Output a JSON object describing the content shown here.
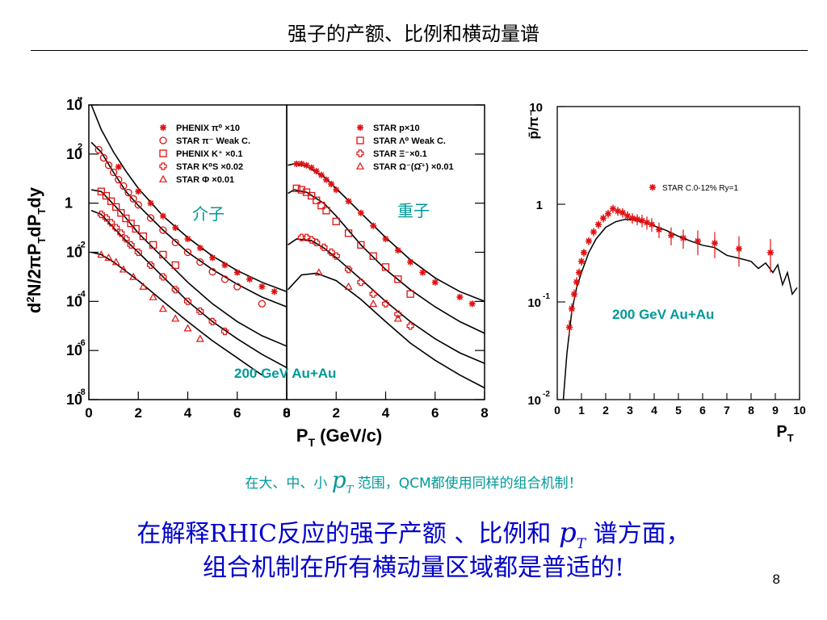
{
  "slide": {
    "title": "强子的产额、比例和横动量谱",
    "caption_pre": "在大、中、小",
    "caption_pt": "p",
    "caption_pt_sub": "T",
    "caption_post": "范围，QCM都使用同样的组合机制！",
    "conclusion_line1_pre": "在解释RHIC反应的强子产额 、比例和 ",
    "conclusion_pt": "p",
    "conclusion_pt_sub": "T",
    "conclusion_line1_post": " 谱方面，",
    "conclusion_line2": "组合机制在所有横动量区域都是普适的!",
    "page_number": "8"
  },
  "colors": {
    "data_marker": "#e01010",
    "label_teal": "#009999",
    "conclusion_blue": "#0000cc"
  },
  "chart_data": [
    {
      "type": "scatter",
      "panel": "left-spectra",
      "ylabel_main": "d",
      "ylabel_parts": [
        "2",
        "N/2πP",
        "T",
        "dP",
        "T",
        "dy"
      ],
      "yscale": "log",
      "ylim": [
        1e-08,
        10000.0
      ],
      "yticks": [
        {
          "base": "10",
          "exp": "4",
          "value": 10000.0
        },
        {
          "base": "10",
          "exp": "2",
          "value": 100.0
        },
        {
          "base": "1",
          "exp": "",
          "value": 1
        },
        {
          "base": "10",
          "exp": "-2",
          "value": 0.01
        },
        {
          "base": "10",
          "exp": "-4",
          "value": 0.0001
        },
        {
          "base": "10",
          "exp": "-6",
          "value": 1e-06
        },
        {
          "base": "10",
          "exp": "-8",
          "value": 1e-08
        }
      ],
      "xlabel_main": "P",
      "xlabel_sub": "T",
      "xlabel_rest": " (GeV/c)",
      "left_xticks": [
        "0",
        "2",
        "4",
        "6",
        "8"
      ],
      "right_xticks": [
        "0",
        "2",
        "4",
        "6",
        "8"
      ],
      "xlim": [
        0,
        8
      ],
      "meson_label": "介子",
      "baryon_label": "重子",
      "energy_label": "200 GeV Au+Au",
      "meson_legend": [
        {
          "marker": "star",
          "text": "PHENIX π⁰ ×10"
        },
        {
          "marker": "circle",
          "text": "STAR π⁻ Weak C."
        },
        {
          "marker": "square",
          "text": "PHENIX K⁺ ×0.1"
        },
        {
          "marker": "cross",
          "text": "STAR K⁰S ×0.02"
        },
        {
          "marker": "triangle",
          "text": "STAR Φ ×0.01"
        }
      ],
      "baryon_legend": [
        {
          "marker": "star",
          "text": "STAR p×10"
        },
        {
          "marker": "square",
          "text": "STAR Λ⁰ Weak C."
        },
        {
          "marker": "cross",
          "text": "STAR Ξ⁻×0.1"
        },
        {
          "marker": "triangle",
          "text": "STAR Ω⁻(Ω̄⁺) ×0.01"
        }
      ],
      "meson_series": [
        {
          "marker": "star",
          "x": [
            1.2,
            2.0,
            2.5,
            3.0,
            3.5,
            4.0,
            4.5,
            5.0,
            5.5,
            6.0,
            6.5,
            7.0,
            7.5
          ],
          "y": [
            30,
            3,
            1,
            0.3,
            0.1,
            0.035,
            0.015,
            0.006,
            0.003,
            0.0015,
            0.0008,
            0.0004,
            0.00025
          ]
        },
        {
          "marker": "circle",
          "x": [
            0.4,
            0.6,
            0.8,
            1.0,
            1.2,
            1.4,
            1.6,
            1.8,
            2.0,
            2.5,
            3.0,
            3.5,
            4.0,
            4.5,
            5.0,
            5.5,
            6.0,
            7.0
          ],
          "y": [
            150,
            70,
            35,
            18,
            9,
            5,
            2.7,
            1.5,
            0.85,
            0.25,
            0.08,
            0.025,
            0.01,
            0.004,
            0.0016,
            0.0008,
            0.0004,
            8e-05
          ]
        },
        {
          "marker": "square",
          "x": [
            0.5,
            0.7,
            0.9,
            1.1,
            1.3,
            1.5,
            1.7,
            1.9,
            2.2,
            2.6,
            3.0,
            3.5
          ],
          "y": [
            3.0,
            2.0,
            1.2,
            0.7,
            0.4,
            0.24,
            0.15,
            0.09,
            0.045,
            0.02,
            0.008,
            0.003
          ]
        },
        {
          "marker": "cross",
          "x": [
            0.5,
            0.7,
            0.9,
            1.1,
            1.3,
            1.5,
            1.7,
            2.0,
            2.5,
            3.0,
            3.5,
            4.0,
            4.5,
            5.0,
            5.5
          ],
          "y": [
            0.35,
            0.25,
            0.16,
            0.1,
            0.06,
            0.035,
            0.02,
            0.01,
            0.003,
            0.001,
            0.0003,
            0.0001,
            4e-05,
            1.5e-05,
            6e-06
          ]
        },
        {
          "marker": "triangle",
          "x": [
            0.5,
            0.8,
            1.1,
            1.4,
            1.8,
            2.2,
            2.6,
            3.0,
            3.5,
            4.0,
            4.5
          ],
          "y": [
            0.008,
            0.006,
            0.004,
            0.002,
            0.001,
            0.0004,
            0.00015,
            5e-05,
            2e-05,
            8e-06,
            3e-06
          ]
        }
      ],
      "meson_curves": [
        {
          "x": [
            0.1,
            0.5,
            1,
            1.5,
            2,
            3,
            4,
            5,
            6,
            7,
            8
          ],
          "y": [
            10000,
            1000,
            120,
            20,
            4,
            0.3,
            0.04,
            0.007,
            0.0018,
            0.0006,
            0.00025
          ]
        },
        {
          "x": [
            0.1,
            0.5,
            1,
            1.5,
            2,
            3,
            4,
            5,
            6,
            7,
            8
          ],
          "y": [
            300,
            120,
            18,
            3,
            0.8,
            0.08,
            0.01,
            0.002,
            0.0005,
            0.00015,
            6e-05
          ]
        },
        {
          "x": [
            0.1,
            0.5,
            1,
            1.5,
            2,
            3,
            4,
            5,
            6,
            7,
            8
          ],
          "y": [
            3.5,
            3,
            0.9,
            0.25,
            0.06,
            0.006,
            0.0006,
            8e-05,
            1.5e-05,
            4e-06,
            1.5e-06
          ]
        },
        {
          "x": [
            0.1,
            0.5,
            1,
            1.5,
            2,
            3,
            4,
            5,
            6,
            7,
            8
          ],
          "y": [
            0.5,
            0.35,
            0.1,
            0.03,
            0.01,
            0.001,
            0.0001,
            1.5e-05,
            3e-06,
            7e-07,
            2e-07
          ]
        },
        {
          "x": [
            0.1,
            0.5,
            1,
            1.5,
            2,
            3,
            4,
            5,
            6,
            7
          ],
          "y": [
            0.01,
            0.008,
            0.004,
            0.0017,
            0.0007,
            0.0001,
            1.5e-05,
            2.5e-06,
            5e-07,
            1e-07
          ]
        }
      ],
      "baryon_series": [
        {
          "marker": "star",
          "x": [
            0.4,
            0.6,
            0.8,
            1.0,
            1.2,
            1.4,
            1.6,
            1.8,
            2.0,
            2.5,
            3.0,
            3.5,
            4.0,
            4.5,
            5.0,
            5.5,
            6.0,
            7.0,
            7.5
          ],
          "y": [
            40,
            40,
            35,
            28,
            20,
            14,
            9,
            6,
            3.5,
            1.2,
            0.4,
            0.12,
            0.035,
            0.012,
            0.004,
            0.0015,
            0.0006,
            0.00015,
            8e-05
          ]
        },
        {
          "marker": "square",
          "x": [
            0.4,
            0.6,
            0.8,
            1.0,
            1.2,
            1.4,
            1.6,
            2.0,
            2.5,
            3.0,
            3.5,
            4.0,
            4.5,
            5.0
          ],
          "y": [
            4,
            3.5,
            2.8,
            2.0,
            1.3,
            0.8,
            0.5,
            0.18,
            0.06,
            0.02,
            0.007,
            0.0025,
            0.0008,
            0.0002
          ]
        },
        {
          "marker": "cross",
          "x": [
            0.6,
            0.8,
            1.0,
            1.2,
            1.5,
            1.8,
            2.0,
            2.5,
            3.0,
            3.5,
            4.0,
            4.5,
            5.0
          ],
          "y": [
            0.04,
            0.04,
            0.032,
            0.025,
            0.016,
            0.01,
            0.007,
            0.002,
            0.0006,
            0.0002,
            8e-05,
            3e-05,
            1e-05
          ]
        },
        {
          "marker": "triangle",
          "x": [
            1.3,
            2.5,
            3.5,
            4.5
          ],
          "y": [
            0.0015,
            0.0004,
            8e-05,
            2e-05
          ]
        }
      ],
      "baryon_curves": [
        {
          "x": [
            0.05,
            0.3,
            0.8,
            1.5,
            2,
            3,
            4,
            5,
            6,
            7,
            8
          ],
          "y": [
            35,
            40,
            32,
            12,
            4,
            0.4,
            0.04,
            0.005,
            0.0009,
            0.00025,
            0.0001
          ]
        },
        {
          "x": [
            0.05,
            0.3,
            0.8,
            1.5,
            2,
            3,
            4,
            5,
            6,
            7,
            8
          ],
          "y": [
            2.5,
            3.5,
            2.8,
            1.0,
            0.3,
            0.02,
            0.002,
            0.0003,
            6e-05,
            1.5e-05,
            5e-06
          ]
        },
        {
          "x": [
            0.05,
            0.4,
            1.0,
            1.5,
            2,
            3,
            4,
            5,
            6,
            7,
            8
          ],
          "y": [
            0.02,
            0.035,
            0.03,
            0.015,
            0.006,
            0.0008,
            0.0001,
            1.5e-05,
            3e-06,
            8e-07,
            3e-07
          ]
        },
        {
          "x": [
            0.05,
            0.6,
            1.2,
            2,
            3,
            4,
            5,
            6,
            7,
            8
          ],
          "y": [
            0.0003,
            0.0012,
            0.0014,
            0.0007,
            0.00012,
            1.5e-05,
            2e-06,
            4e-07,
            1e-07,
            3e-08
          ]
        }
      ]
    },
    {
      "type": "scatter",
      "panel": "right-ratio",
      "ylabel": "p̄/π⁻",
      "yscale": "log",
      "ylim": [
        0.01,
        10
      ],
      "yticks": [
        {
          "base": "10",
          "exp": "",
          "value": 10
        },
        {
          "base": "1",
          "exp": "",
          "value": 1
        },
        {
          "base": "10",
          "exp": "-1",
          "value": 0.1
        },
        {
          "base": "10",
          "exp": "-2",
          "value": 0.01
        }
      ],
      "xlim": [
        0,
        10
      ],
      "xticks": [
        "0",
        "1",
        "2",
        "3",
        "4",
        "5",
        "6",
        "7",
        "8",
        "9",
        "10"
      ],
      "xlabel_main": "P",
      "xlabel_sub": "T",
      "legend": {
        "marker": "star",
        "text": "STAR C.0-12% Ry=1"
      },
      "energy_label": "200 GeV Au+Au",
      "series": [
        {
          "marker": "star",
          "name": "STAR C.0-12% Ry=1",
          "x": [
            0.5,
            0.6,
            0.7,
            0.8,
            0.9,
            1.0,
            1.1,
            1.3,
            1.5,
            1.7,
            1.9,
            2.1,
            2.3,
            2.5,
            2.7,
            2.9,
            3.1,
            3.3,
            3.5,
            3.7,
            3.9,
            4.2,
            4.7,
            5.2,
            5.8,
            6.5,
            7.5,
            8.8
          ],
          "y": [
            0.055,
            0.085,
            0.12,
            0.16,
            0.2,
            0.26,
            0.32,
            0.42,
            0.52,
            0.62,
            0.72,
            0.8,
            0.9,
            0.85,
            0.82,
            0.76,
            0.72,
            0.7,
            0.68,
            0.65,
            0.62,
            0.55,
            0.48,
            0.45,
            0.42,
            0.4,
            0.35,
            0.32
          ],
          "err": [
            0.01,
            0.012,
            0.015,
            0.02,
            0.02,
            0.025,
            0.03,
            0.04,
            0.05,
            0.06,
            0.07,
            0.08,
            0.09,
            0.09,
            0.09,
            0.09,
            0.09,
            0.09,
            0.1,
            0.1,
            0.1,
            0.1,
            0.1,
            0.1,
            0.12,
            0.12,
            0.12,
            0.12
          ]
        }
      ],
      "curve": {
        "x": [
          0.25,
          0.4,
          0.6,
          0.8,
          1.0,
          1.3,
          1.6,
          2.0,
          2.4,
          2.8,
          3.0,
          3.5,
          4.0,
          4.5,
          5.0,
          5.5,
          6.0,
          6.5,
          7.0,
          7.5,
          8.0,
          8.3,
          8.6,
          8.9,
          9.1,
          9.3,
          9.5,
          9.7,
          9.9
        ],
        "y": [
          0.01,
          0.03,
          0.08,
          0.14,
          0.2,
          0.32,
          0.44,
          0.58,
          0.66,
          0.7,
          0.7,
          0.66,
          0.6,
          0.54,
          0.47,
          0.42,
          0.38,
          0.36,
          0.3,
          0.28,
          0.26,
          0.22,
          0.25,
          0.2,
          0.24,
          0.15,
          0.2,
          0.12,
          0.14
        ]
      }
    }
  ]
}
